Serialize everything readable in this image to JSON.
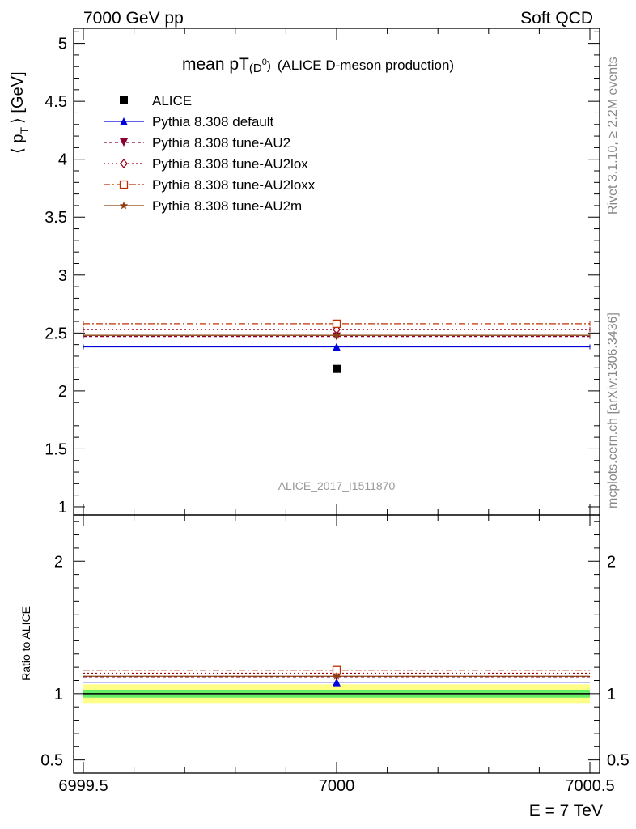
{
  "header": {
    "left": "7000 GeV pp",
    "right": "Soft QCD"
  },
  "side_labels": {
    "rivet": "Rivet 3.1.10, ≥ 2.2M events",
    "mcplots": "mcplots.cern.ch [arXiv:1306.3436]"
  },
  "colors": {
    "alice": "#000000",
    "default": "#0000dd",
    "au2": "#8b0033",
    "au2lox": "#a0001a",
    "au2loxx": "#c03000",
    "au2m": "#8b4010",
    "band_inner": "#66ee66",
    "band_outer": "#ffff88"
  },
  "chart_data": [
    {
      "type": "line",
      "title_main": "mean pT",
      "title_sup": "(D",
      "title_sup0": "0",
      "title_sup_close": ")",
      "title_rest": "(ALICE D-meson production)",
      "ylabel": "⟨ p",
      "ylabel_sub": "T",
      "ylabel_unit": "⟩ [GeV]",
      "watermark": "ALICE_2017_I1511870",
      "xlim": [
        6999.5,
        7000.5
      ],
      "ylim": [
        0.93,
        5.13
      ],
      "yticks": [
        1,
        1.5,
        2,
        2.5,
        3,
        3.5,
        4,
        4.5,
        5
      ],
      "ytick_labels": [
        "1",
        "1.5",
        "2",
        "2.5",
        "3",
        "3.5",
        "4",
        "4.5",
        "5"
      ],
      "data": {
        "name": "ALICE",
        "x": 7000,
        "y": 2.19
      },
      "series": [
        {
          "name": "Pythia 8.308 default",
          "key": "default",
          "y": 2.38,
          "marker": "triangle-up",
          "dash": ""
        },
        {
          "name": "Pythia 8.308 tune-AU2",
          "key": "au2",
          "y": 2.47,
          "marker": "triangle-down",
          "dash": "4,3"
        },
        {
          "name": "Pythia 8.308 tune-AU2lox",
          "key": "au2lox",
          "y": 2.53,
          "marker": "diamond-open",
          "dash": "2,3"
        },
        {
          "name": "Pythia 8.308 tune-AU2loxx",
          "key": "au2loxx",
          "y": 2.58,
          "marker": "square-open",
          "dash": "8,3,2,3"
        },
        {
          "name": "Pythia 8.308 tune-AU2m",
          "key": "au2m",
          "y": 2.48,
          "marker": "star",
          "dash": ""
        }
      ]
    },
    {
      "type": "line",
      "ylabel": "Ratio to ALICE",
      "xlabel": "E = 7 TeV",
      "xlim": [
        6999.5,
        7000.5
      ],
      "ylim": [
        0.4,
        2.35
      ],
      "xticks": [
        6999.5,
        7000,
        7000.5
      ],
      "xtick_labels": [
        "6999.5",
        "7000",
        "7000.5"
      ],
      "yticks": [
        0.5,
        1,
        2
      ],
      "ytick_labels": [
        "0.5",
        "1",
        "2"
      ],
      "band_inner": [
        0.97,
        1.03
      ],
      "band_outer": [
        0.93,
        1.07
      ],
      "series": [
        {
          "name": "Pythia 8.308 default",
          "key": "default",
          "y": 1.087
        },
        {
          "name": "Pythia 8.308 tune-AU2",
          "key": "au2",
          "y": 1.128
        },
        {
          "name": "Pythia 8.308 tune-AU2lox",
          "key": "au2lox",
          "y": 1.155
        },
        {
          "name": "Pythia 8.308 tune-AU2loxx",
          "key": "au2loxx",
          "y": 1.178
        },
        {
          "name": "Pythia 8.308 tune-AU2m",
          "key": "au2m",
          "y": 1.132
        }
      ]
    }
  ]
}
